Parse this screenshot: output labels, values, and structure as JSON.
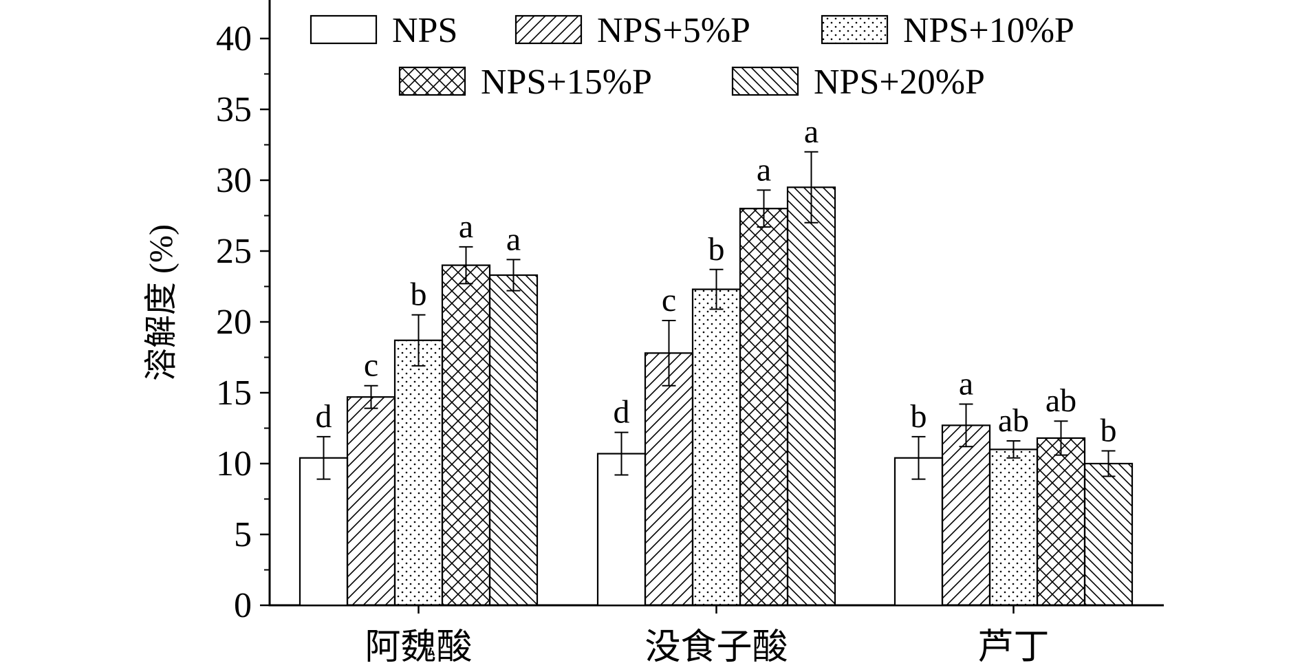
{
  "chart_data": {
    "type": "bar",
    "title": "",
    "xlabel": "",
    "ylabel": "溶解度 (%)",
    "ylim": [
      0,
      42
    ],
    "yticks": [
      0,
      5,
      10,
      15,
      20,
      25,
      30,
      35,
      40
    ],
    "legend_position": "top",
    "grid": false,
    "categories": [
      "阿魏酸",
      "没食子酸",
      "芦丁"
    ],
    "series": [
      {
        "name": "NPS",
        "pattern": "none",
        "values": [
          10.4,
          10.7,
          10.4
        ],
        "errors": [
          1.5,
          1.5,
          1.5
        ],
        "significance": [
          "d",
          "d",
          "b"
        ]
      },
      {
        "name": "NPS+5%P",
        "pattern": "hatch-forward",
        "values": [
          14.7,
          17.8,
          12.7
        ],
        "errors": [
          0.8,
          2.3,
          1.5
        ],
        "significance": [
          "c",
          "c",
          "a"
        ]
      },
      {
        "name": "NPS+10%P",
        "pattern": "dots",
        "values": [
          18.7,
          22.3,
          11.0
        ],
        "errors": [
          1.8,
          1.4,
          0.6
        ],
        "significance": [
          "b",
          "b",
          "ab"
        ]
      },
      {
        "name": "NPS+15%P",
        "pattern": "crosshatch",
        "values": [
          24.0,
          28.0,
          11.8
        ],
        "errors": [
          1.3,
          1.3,
          1.2
        ],
        "significance": [
          "a",
          "a",
          "ab"
        ]
      },
      {
        "name": "NPS+20%P",
        "pattern": "hatch-back",
        "values": [
          23.3,
          29.5,
          10.0
        ],
        "errors": [
          1.1,
          2.5,
          0.9
        ],
        "significance": [
          "a",
          "a",
          "b"
        ]
      }
    ]
  }
}
